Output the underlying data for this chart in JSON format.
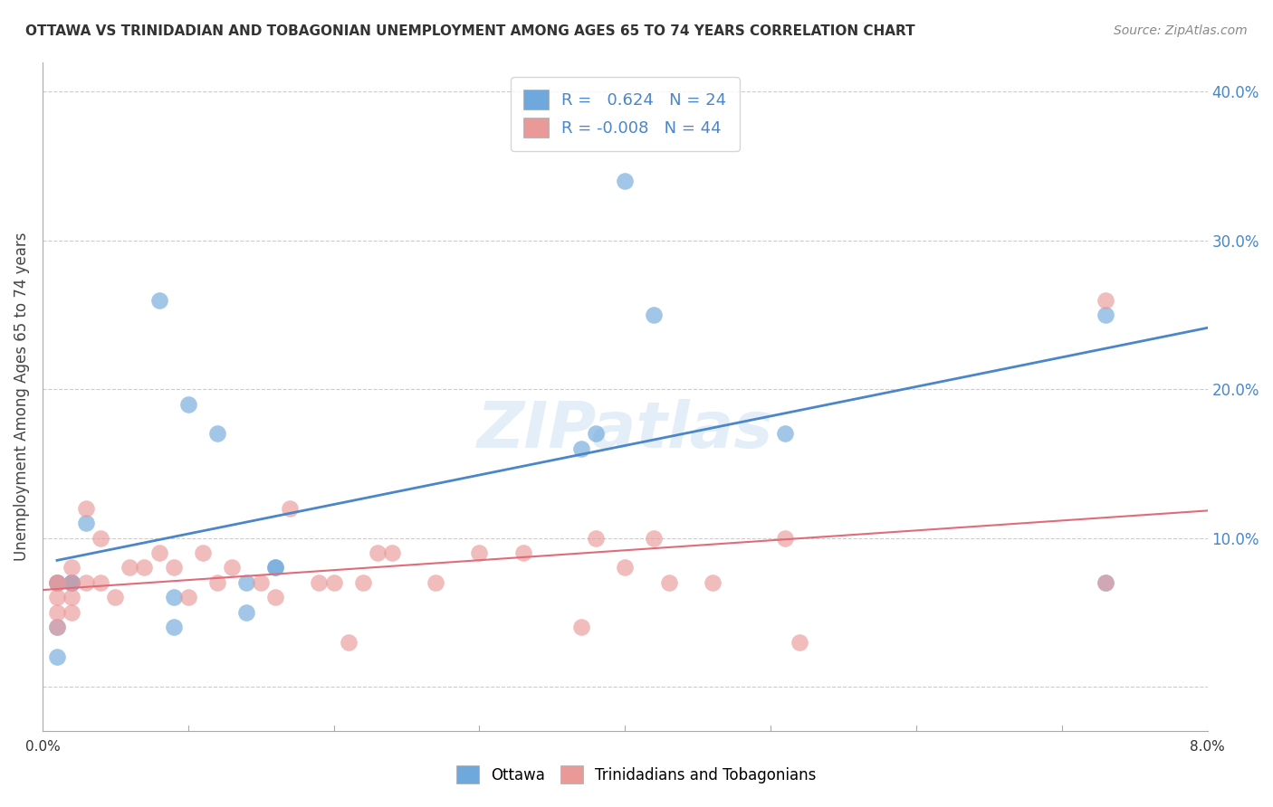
{
  "title": "OTTAWA VS TRINIDADIAN AND TOBAGONIAN UNEMPLOYMENT AMONG AGES 65 TO 74 YEARS CORRELATION CHART",
  "source": "Source: ZipAtlas.com",
  "ylabel": "Unemployment Among Ages 65 to 74 years",
  "ytick_vals": [
    0,
    0.1,
    0.2,
    0.3,
    0.4
  ],
  "ytick_labels": [
    "",
    "10.0%",
    "20.0%",
    "30.0%",
    "40.0%"
  ],
  "xlim": [
    0,
    0.08
  ],
  "ylim": [
    -0.03,
    0.42
  ],
  "R_ottawa": 0.624,
  "N_ottawa": 24,
  "R_tnt": -0.008,
  "N_tnt": 44,
  "color_ottawa": "#6fa8dc",
  "color_tnt": "#ea9999",
  "trendline_color_ottawa": "#4a86c8",
  "trendline_color_tnt": "#e06c7a",
  "watermark": "ZIPatlas",
  "legend_label_ottawa": "Ottawa",
  "legend_label_tnt": "Trinidadians and Tobagonians",
  "ottawa_x": [
    0.001,
    0.001,
    0.001,
    0.001,
    0.002,
    0.002,
    0.002,
    0.003,
    0.008,
    0.009,
    0.009,
    0.01,
    0.012,
    0.014,
    0.014,
    0.016,
    0.016,
    0.037,
    0.038,
    0.04,
    0.042,
    0.051,
    0.073,
    0.073
  ],
  "ottawa_y": [
    0.07,
    0.07,
    0.04,
    0.02,
    0.07,
    0.07,
    0.07,
    0.11,
    0.26,
    0.04,
    0.06,
    0.19,
    0.17,
    0.07,
    0.05,
    0.08,
    0.08,
    0.16,
    0.17,
    0.34,
    0.25,
    0.17,
    0.25,
    0.07
  ],
  "tnt_x": [
    0.001,
    0.001,
    0.001,
    0.001,
    0.001,
    0.002,
    0.002,
    0.002,
    0.002,
    0.003,
    0.003,
    0.004,
    0.004,
    0.005,
    0.006,
    0.007,
    0.008,
    0.009,
    0.01,
    0.011,
    0.012,
    0.013,
    0.015,
    0.016,
    0.017,
    0.019,
    0.02,
    0.021,
    0.022,
    0.023,
    0.024,
    0.027,
    0.03,
    0.033,
    0.037,
    0.038,
    0.04,
    0.042,
    0.043,
    0.046,
    0.051,
    0.052,
    0.073,
    0.073
  ],
  "tnt_y": [
    0.07,
    0.07,
    0.05,
    0.04,
    0.06,
    0.08,
    0.07,
    0.05,
    0.06,
    0.07,
    0.12,
    0.07,
    0.1,
    0.06,
    0.08,
    0.08,
    0.09,
    0.08,
    0.06,
    0.09,
    0.07,
    0.08,
    0.07,
    0.06,
    0.12,
    0.07,
    0.07,
    0.03,
    0.07,
    0.09,
    0.09,
    0.07,
    0.09,
    0.09,
    0.04,
    0.1,
    0.08,
    0.1,
    0.07,
    0.07,
    0.1,
    0.03,
    0.07,
    0.26
  ]
}
